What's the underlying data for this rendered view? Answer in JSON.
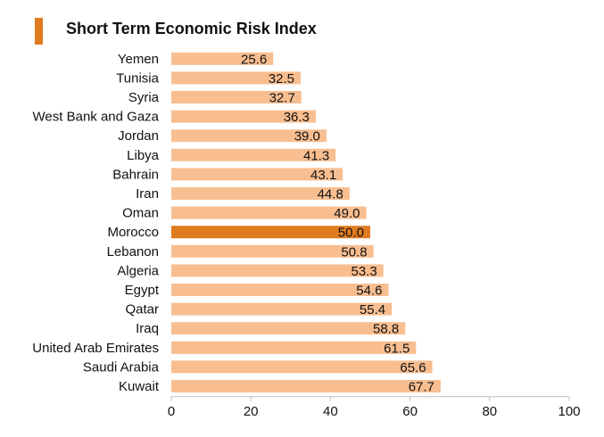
{
  "chart_data": {
    "type": "bar",
    "orientation": "horizontal",
    "title": "Short Term Economic Risk Index",
    "categories": [
      "Yemen",
      "Tunisia",
      "Syria",
      "West Bank and Gaza",
      "Jordan",
      "Libya",
      "Bahrain",
      "Iran",
      "Oman",
      "Morocco",
      "Lebanon",
      "Algeria",
      "Egypt",
      "Qatar",
      "Iraq",
      "United Arab Emirates",
      "Saudi Arabia",
      "Kuwait"
    ],
    "values": [
      25.6,
      32.5,
      32.7,
      36.3,
      39.0,
      41.3,
      43.1,
      44.8,
      49.0,
      50.0,
      50.8,
      53.3,
      54.6,
      55.4,
      58.8,
      61.5,
      65.6,
      67.7
    ],
    "value_labels": [
      "25.6",
      "32.5",
      "32.7",
      "36.3",
      "39.0",
      "41.3",
      "43.1",
      "44.8",
      "49.0",
      "50.0",
      "50.8",
      "53.3",
      "54.6",
      "55.4",
      "58.8",
      "61.5",
      "65.6",
      "67.7"
    ],
    "highlight": "Morocco",
    "xlim": [
      0,
      100
    ],
    "xticks": [
      0,
      20,
      40,
      60,
      80,
      100
    ],
    "xlabel": "",
    "ylabel": "",
    "grid": false,
    "colors": {
      "bar": "#f8be90",
      "highlight": "#e07a1f",
      "accent": "#e07a1f",
      "axis": "#bfbfbf",
      "text": "#111111"
    }
  }
}
